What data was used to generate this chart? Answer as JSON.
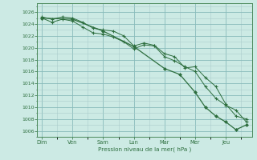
{
  "background_color": "#cceae4",
  "grid_color": "#aacccc",
  "line_color": "#2d6e3e",
  "xlabel": "Pression niveau de la mer( hPa )",
  "ylim": [
    1005.0,
    1027.5
  ],
  "yticks": [
    1006,
    1008,
    1010,
    1012,
    1014,
    1016,
    1018,
    1020,
    1022,
    1024,
    1026
  ],
  "xtick_labels": [
    "Dim",
    "Ven",
    "Sam",
    "Lun",
    "Mar",
    "Mer",
    "Jeu"
  ],
  "xtick_positions": [
    0,
    1,
    2,
    3,
    4,
    5,
    6
  ],
  "xlim": [
    -0.15,
    6.85
  ],
  "line1_x": [
    0.0,
    0.33,
    0.67,
    1.0,
    1.33,
    1.67,
    2.0,
    2.33,
    2.67,
    3.0,
    3.33,
    3.67,
    4.0,
    4.33,
    4.67,
    5.0,
    5.33,
    5.67,
    6.0,
    6.33,
    6.67
  ],
  "line1_y": [
    1025.2,
    1024.8,
    1025.2,
    1025.0,
    1024.3,
    1023.3,
    1023.0,
    1022.8,
    1022.0,
    1020.3,
    1020.8,
    1020.4,
    1019.0,
    1018.5,
    1016.6,
    1016.8,
    1015.0,
    1013.5,
    1010.5,
    1008.5,
    1008.0
  ],
  "line2_x": [
    0.0,
    0.33,
    0.67,
    1.0,
    1.33,
    1.67,
    2.0,
    2.33,
    2.67,
    3.0,
    3.33,
    3.67,
    4.0,
    4.33,
    4.67,
    5.0,
    5.33,
    5.67,
    6.0,
    6.33,
    6.67
  ],
  "line2_y": [
    1025.0,
    1024.3,
    1024.8,
    1024.5,
    1023.5,
    1022.5,
    1022.3,
    1021.8,
    1021.0,
    1019.8,
    1020.5,
    1020.3,
    1018.5,
    1017.8,
    1016.8,
    1016.0,
    1013.5,
    1011.5,
    1010.3,
    1009.5,
    1007.5
  ],
  "line3_x": [
    0.0,
    1.0,
    2.0,
    3.0,
    4.0,
    4.5,
    5.0,
    5.33,
    5.67,
    6.0,
    6.33,
    6.67
  ],
  "line3_y": [
    1025.0,
    1024.8,
    1022.8,
    1020.2,
    1016.5,
    1015.5,
    1012.5,
    1010.0,
    1008.5,
    1007.5,
    1006.2,
    1007.0
  ]
}
